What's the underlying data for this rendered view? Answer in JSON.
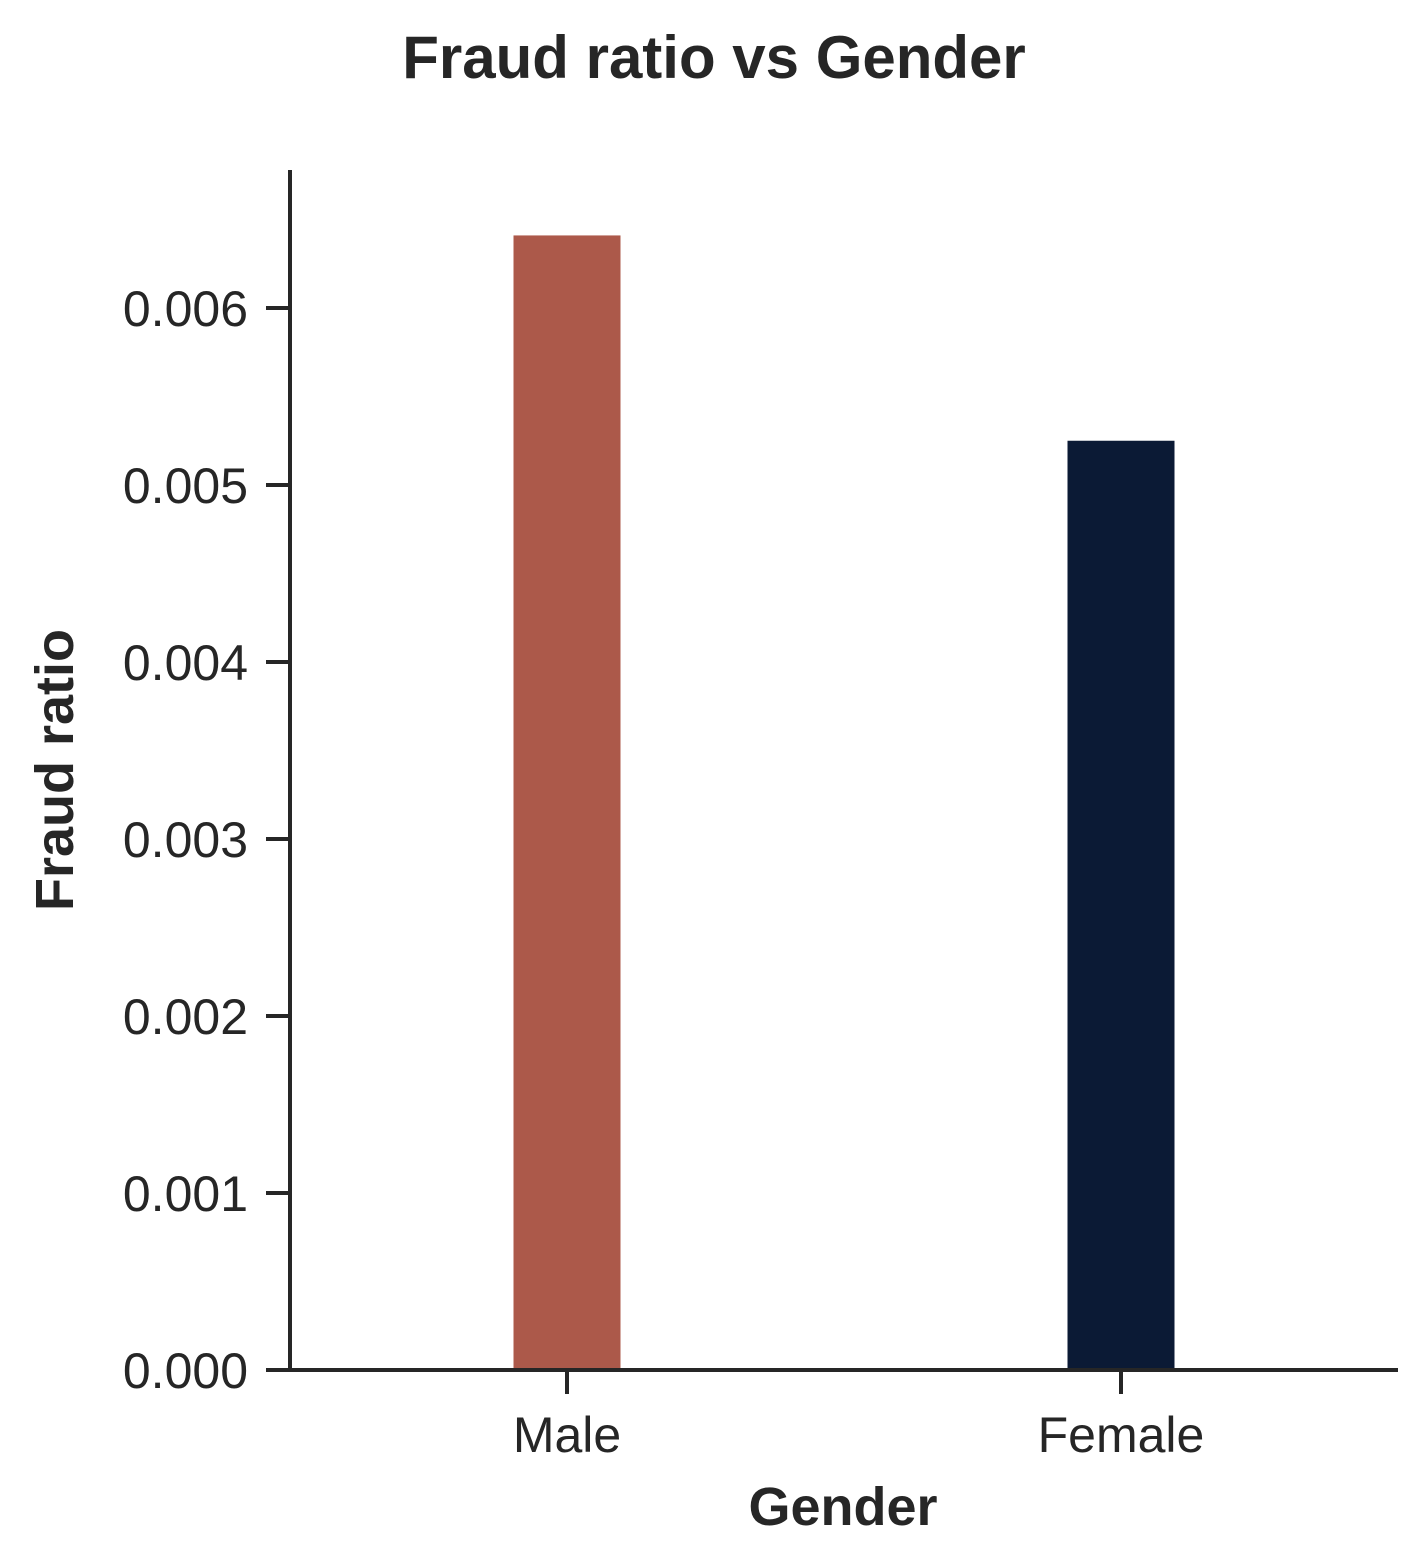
{
  "chart_data": {
    "type": "bar",
    "title": "Fraud ratio vs Gender",
    "xlabel": "Gender",
    "ylabel": "Fraud ratio",
    "categories": [
      "Male",
      "Female"
    ],
    "values": [
      0.00641,
      0.00525
    ],
    "colors": [
      "#ac594a",
      "#0b1a35"
    ],
    "ylim": [
      0,
      0.00675
    ],
    "yticks": [
      "0.000",
      "0.001",
      "0.002",
      "0.003",
      "0.004",
      "0.005",
      "0.006"
    ],
    "ytick_values": [
      0,
      0.001,
      0.002,
      0.003,
      0.004,
      0.005,
      0.006
    ],
    "grid": false,
    "legend": "none"
  }
}
